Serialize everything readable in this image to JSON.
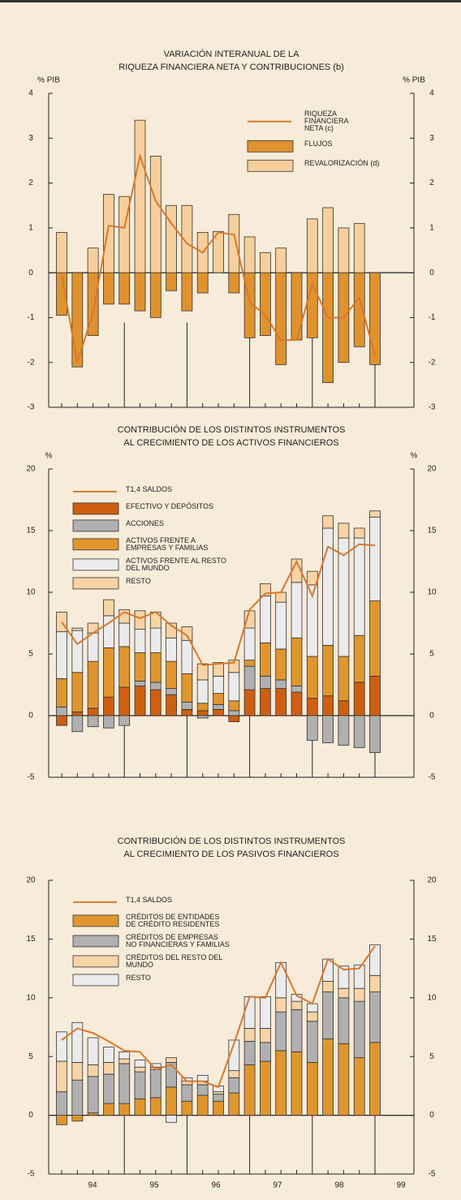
{
  "chart_data": [
    {
      "type": "bar",
      "stacked": true,
      "title": [
        "VARIACIÓN INTERANUAL DE LA",
        "RIQUEZA FINANCIERA NETA Y CONTRIBUCIONES (b)"
      ],
      "ylabel": "% PIB",
      "y2label": "% PIB",
      "legend": "upper right",
      "categories": [
        null,
        null,
        null,
        null,
        null,
        null,
        null,
        null,
        null,
        null,
        null,
        null,
        null,
        null,
        null,
        null,
        null,
        null,
        null,
        null,
        null
      ],
      "ylim": [
        -3,
        4
      ],
      "yticks": [
        -3,
        -2,
        -1,
        0,
        1,
        2,
        3,
        4
      ],
      "series": [
        {
          "name": "RIQUEZA FINANCIERA NETA (c)",
          "type": "line",
          "color": "#d9782a",
          "values": [
            -0.05,
            -2.0,
            -0.9,
            1.05,
            1.0,
            2.6,
            1.6,
            1.1,
            0.65,
            0.45,
            0.9,
            0.85,
            -0.65,
            -0.95,
            -1.5,
            -1.5,
            -0.25,
            -1.0,
            -1.0,
            -0.55,
            -1.85
          ]
        },
        {
          "name": "FLUJOS",
          "type": "bar",
          "color": "#e0922f",
          "values": [
            -0.95,
            -2.1,
            -1.4,
            -0.7,
            -0.7,
            -0.85,
            -1.0,
            -0.4,
            -0.85,
            -0.45,
            0,
            -0.45,
            -1.45,
            -1.4,
            -2.05,
            -1.5,
            -1.45,
            -2.45,
            -2.0,
            -1.65,
            -2.05
          ]
        },
        {
          "name": "REVALORIZACIÓN (d)",
          "type": "bar",
          "color": "#f7cf9c",
          "values": [
            0.9,
            0,
            0.55,
            1.75,
            1.7,
            3.4,
            2.6,
            1.5,
            1.5,
            0.9,
            0.92,
            1.3,
            0.8,
            0.45,
            0.55,
            0,
            1.2,
            1.45,
            1.0,
            1.1,
            0
          ]
        }
      ]
    },
    {
      "type": "bar",
      "stacked": true,
      "title": [
        "CONTRIBUCIÓN DE LOS DISTINTOS INSTRUMENTOS",
        "AL CRECIMIENTO DE LOS ACTIVOS FINANCIEROS"
      ],
      "ylabel": "%",
      "y2label": "%",
      "legend": "upper left",
      "categories": [
        null,
        null,
        null,
        null,
        null,
        null,
        null,
        null,
        null,
        null,
        null,
        null,
        null,
        null,
        null,
        null,
        null,
        null,
        null,
        null,
        null
      ],
      "ylim": [
        -5,
        20
      ],
      "yticks": [
        -5,
        0,
        5,
        10,
        15,
        20
      ],
      "series": [
        {
          "name": "T1,4 SALDOS",
          "type": "line",
          "color": "#d9782a",
          "values": [
            7.6,
            5.8,
            6.7,
            7.5,
            8.4,
            7.9,
            8.4,
            7.3,
            6.5,
            4.1,
            4.2,
            4.3,
            8.6,
            9.9,
            10.0,
            12.5,
            9.7,
            13.7,
            13.0,
            13.9,
            13.8
          ]
        },
        {
          "name": "EFECTIVO Y DEPÓSITOS",
          "type": "bar",
          "color": "#cf5f10",
          "values": [
            -0.8,
            0.3,
            0.6,
            1.5,
            2.3,
            2.4,
            2.1,
            1.7,
            0.5,
            0.4,
            0.5,
            -0.5,
            2.1,
            2.2,
            2.2,
            1.9,
            1.4,
            1.6,
            1.2,
            2.7,
            3.2
          ]
        },
        {
          "name": "ACCIONES",
          "type": "bar",
          "color": "#b0b0b0",
          "values": [
            0.7,
            -1.3,
            -0.9,
            -1.0,
            -0.8,
            0.4,
            0.6,
            0.5,
            0.6,
            -0.2,
            0.4,
            0.4,
            1.9,
            1.0,
            0.7,
            0.5,
            -2.0,
            -2.2,
            -2.4,
            -2.6,
            -3.0
          ]
        },
        {
          "name": "ACTIVOS FRENTE A EMPRESAS Y FAMILIAS",
          "type": "bar",
          "color": "#e0962e",
          "values": [
            2.3,
            3.2,
            3.8,
            4.0,
            3.3,
            2.3,
            2.4,
            2.2,
            2.3,
            0.6,
            0.9,
            0.8,
            0.5,
            2.7,
            2.5,
            3.9,
            3.4,
            4.1,
            3.6,
            3.8,
            6.1
          ]
        },
        {
          "name": "ACTIVOS FRENTE AL RESTO DEL MUNDO",
          "type": "bar",
          "color": "#ebebeb",
          "values": [
            3.8,
            3.4,
            2.3,
            2.6,
            1.9,
            1.9,
            2.0,
            1.9,
            2.7,
            1.9,
            1.4,
            2.3,
            2.6,
            3.8,
            3.8,
            4.5,
            5.8,
            9.5,
            9.6,
            7.9,
            6.8
          ]
        },
        {
          "name": "RESTO",
          "type": "bar",
          "color": "#f8d3a5",
          "values": [
            1.6,
            0.2,
            0.8,
            1.3,
            1.1,
            1.5,
            1.3,
            1.2,
            1.1,
            1.3,
            1.1,
            1.0,
            1.4,
            1.0,
            0.8,
            1.9,
            1.1,
            1.0,
            1.2,
            0.8,
            0.5
          ]
        }
      ]
    },
    {
      "type": "bar",
      "stacked": true,
      "title": [
        "CONTRIBUCIÓN DE LOS DISTINTOS INSTRUMENTOS",
        "AL CRECIMIENTO DE LOS PASIVOS FINANCIEROS"
      ],
      "legend": "upper left",
      "categories": [
        null,
        null,
        null,
        null,
        null,
        null,
        null,
        null,
        null,
        null,
        null,
        null,
        null,
        null,
        null,
        null,
        null,
        null,
        null,
        null,
        null
      ],
      "year_labels": [
        "94",
        "95",
        "96",
        "97",
        "98",
        "99"
      ],
      "ylim": [
        -5,
        20
      ],
      "yticks": [
        -5,
        0,
        5,
        10,
        15,
        20
      ],
      "series": [
        {
          "name": "T1,4 SALDOS",
          "type": "line",
          "color": "#d9782a",
          "values": [
            6.4,
            7.4,
            7.0,
            6.3,
            5.5,
            5.4,
            3.9,
            4.3,
            2.9,
            2.9,
            2.4,
            6.1,
            10.1,
            10.0,
            13.0,
            10.2,
            9.5,
            13.3,
            12.4,
            12.5,
            14.4
          ]
        },
        {
          "name": "CRÉDITOS DE ENTIDADES DE CRÉDITO RESIDENTES",
          "type": "bar",
          "color": "#e0962e",
          "values": [
            -0.8,
            -0.5,
            0.2,
            1.0,
            1.0,
            1.4,
            1.5,
            2.4,
            1.2,
            1.7,
            1.2,
            1.9,
            4.3,
            4.6,
            5.5,
            5.4,
            4.5,
            6.5,
            6.1,
            4.9,
            6.2
          ]
        },
        {
          "name": "CRÉDITOS DE EMPRESAS NO FINANCIERAS Y FAMILIAS",
          "type": "bar",
          "color": "#b0b0b0",
          "values": [
            2.0,
            3.0,
            3.1,
            2.5,
            3.4,
            2.3,
            2.4,
            2.1,
            1.4,
            0.9,
            0.6,
            1.3,
            2.0,
            1.6,
            3.3,
            3.6,
            3.5,
            4.0,
            3.9,
            4.8,
            4.3
          ]
        },
        {
          "name": "CRÉDITOS DEL RESTO DEL MUNDO",
          "type": "bar",
          "color": "#f8d3a5",
          "values": [
            2.6,
            1.5,
            1.0,
            1.0,
            0.4,
            0.4,
            0.2,
            0.4,
            0.3,
            0.3,
            0.2,
            0.6,
            1.1,
            1.2,
            1.2,
            0.7,
            0.8,
            0.9,
            0.8,
            1.1,
            1.4
          ]
        },
        {
          "name": "RESTO",
          "type": "bar",
          "color": "#ebebeb",
          "values": [
            2.5,
            3.4,
            2.3,
            1.3,
            0.6,
            0.6,
            0.3,
            -0.6,
            0.3,
            0.5,
            0.5,
            2.6,
            2.7,
            2.7,
            3.0,
            0.6,
            0.7,
            1.9,
            1.9,
            2.0,
            2.6
          ]
        }
      ]
    }
  ]
}
